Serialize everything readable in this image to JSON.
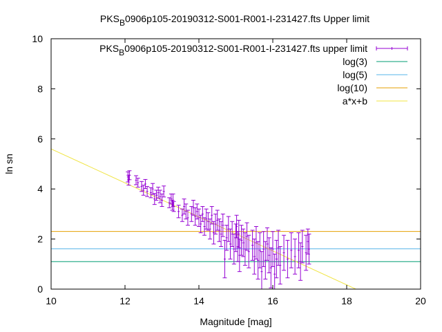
{
  "chart_data": {
    "type": "scatter",
    "title": "PKS_B0906p105-20190312-S001-R001-I-231427.fts Upper limit",
    "title_parts": {
      "pre": "PKS",
      "sub": "B",
      "post": "0906p105-20190312-S001-R001-I-231427.fts Upper limit"
    },
    "xlabel": "Magnitude [mag]",
    "ylabel": "ln sn",
    "xlim": [
      10,
      20
    ],
    "ylim": [
      0,
      10
    ],
    "xticks": [
      "10",
      "12",
      "14",
      "16",
      "18",
      "20"
    ],
    "yticks": [
      "0",
      "2",
      "4",
      "6",
      "8",
      "10"
    ],
    "grid": false,
    "legend_position": "top-right",
    "series": [
      {
        "name": "PKS_B0906p105-20190312-S001-R001-I-231427.fts upper limit",
        "name_parts": {
          "pre": "PKS",
          "sub": "B",
          "post": "0906p105-20190312-S001-R001-I-231427.fts upper limit"
        },
        "kind": "errorbars",
        "color": "#9400d3",
        "points": [
          [
            12.08,
            4.48,
            0.2
          ],
          [
            12.1,
            4.35,
            0.2
          ],
          [
            12.12,
            4.55,
            0.18
          ],
          [
            12.3,
            4.35,
            0.18
          ],
          [
            12.35,
            4.25,
            0.18
          ],
          [
            12.45,
            4.1,
            0.2
          ],
          [
            12.5,
            3.95,
            0.2
          ],
          [
            12.55,
            4.2,
            0.18
          ],
          [
            12.6,
            3.9,
            0.2
          ],
          [
            12.7,
            3.85,
            0.2
          ],
          [
            12.75,
            4.0,
            0.22
          ],
          [
            12.8,
            3.6,
            0.22
          ],
          [
            12.85,
            3.75,
            0.2
          ],
          [
            12.9,
            3.85,
            0.22
          ],
          [
            12.95,
            3.7,
            0.25
          ],
          [
            13.0,
            3.55,
            0.25
          ],
          [
            13.05,
            3.9,
            0.22
          ],
          [
            13.2,
            3.45,
            0.2
          ],
          [
            13.25,
            3.6,
            0.2
          ],
          [
            13.28,
            3.35,
            0.2
          ],
          [
            13.3,
            3.55,
            0.25
          ],
          [
            13.32,
            3.3,
            0.2
          ],
          [
            13.45,
            3.1,
            0.25
          ],
          [
            13.55,
            2.95,
            0.25
          ],
          [
            13.6,
            3.3,
            0.3
          ],
          [
            13.65,
            3.1,
            0.3
          ],
          [
            13.7,
            2.85,
            0.3
          ],
          [
            13.8,
            3.0,
            0.3
          ],
          [
            13.85,
            3.25,
            0.3
          ],
          [
            13.9,
            2.9,
            0.35
          ],
          [
            13.95,
            3.1,
            0.3
          ],
          [
            14.0,
            2.85,
            0.35
          ],
          [
            14.05,
            2.6,
            0.35
          ],
          [
            14.1,
            3.0,
            0.3
          ],
          [
            14.15,
            2.5,
            0.35
          ],
          [
            14.2,
            2.8,
            0.4
          ],
          [
            14.25,
            2.7,
            0.35
          ],
          [
            14.3,
            2.4,
            0.4
          ],
          [
            14.35,
            2.95,
            0.35
          ],
          [
            14.4,
            2.25,
            0.45
          ],
          [
            14.45,
            2.6,
            0.4
          ],
          [
            14.5,
            2.75,
            0.4
          ],
          [
            14.55,
            2.35,
            0.45
          ],
          [
            14.6,
            2.2,
            0.5
          ],
          [
            14.65,
            2.55,
            0.45
          ],
          [
            14.7,
            1.2,
            0.75
          ],
          [
            14.75,
            2.05,
            0.5
          ],
          [
            14.8,
            2.4,
            0.5
          ],
          [
            14.85,
            1.8,
            0.6
          ],
          [
            14.9,
            2.2,
            0.5
          ],
          [
            14.95,
            1.6,
            0.6
          ],
          [
            15.0,
            2.05,
            0.55
          ],
          [
            15.02,
            2.5,
            0.45
          ],
          [
            15.05,
            1.7,
            0.6
          ],
          [
            15.08,
            2.2,
            0.55
          ],
          [
            15.1,
            1.35,
            0.65
          ],
          [
            15.15,
            1.95,
            0.6
          ],
          [
            15.2,
            1.85,
            0.55
          ],
          [
            15.25,
            1.6,
            0.65
          ],
          [
            15.3,
            2.1,
            0.55
          ],
          [
            15.35,
            1.5,
            0.65
          ],
          [
            15.45,
            1.75,
            0.6
          ],
          [
            15.5,
            1.3,
            0.7
          ],
          [
            15.55,
            1.85,
            0.65
          ],
          [
            15.6,
            1.15,
            0.75
          ],
          [
            15.65,
            1.55,
            0.7
          ],
          [
            15.7,
            0.7,
            0.8
          ],
          [
            15.75,
            1.6,
            0.7
          ],
          [
            15.8,
            1.15,
            0.75
          ],
          [
            15.85,
            1.8,
            0.65
          ],
          [
            15.9,
            1.35,
            0.7
          ],
          [
            15.95,
            0.85,
            0.8
          ],
          [
            16.0,
            1.6,
            0.7
          ],
          [
            16.05,
            0.6,
            0.8
          ],
          [
            16.1,
            1.2,
            0.75
          ],
          [
            16.15,
            1.65,
            0.7
          ],
          [
            16.2,
            0.95,
            0.75
          ],
          [
            16.3,
            1.45,
            0.7
          ],
          [
            16.4,
            1.2,
            0.75
          ],
          [
            16.5,
            1.55,
            0.7
          ],
          [
            16.6,
            1.3,
            0.7
          ],
          [
            16.7,
            1.55,
            0.7
          ],
          [
            16.75,
            1.1,
            0.75
          ],
          [
            16.8,
            1.7,
            0.65
          ],
          [
            16.9,
            1.45,
            0.7
          ],
          [
            16.95,
            1.9,
            0.5
          ],
          [
            16.98,
            1.6,
            0.6
          ]
        ]
      },
      {
        "name": "log(3)",
        "kind": "hline",
        "y": 1.0986,
        "color": "#009e73"
      },
      {
        "name": "log(5)",
        "kind": "hline",
        "y": 1.6094,
        "color": "#56b4e9"
      },
      {
        "name": "log(10)",
        "kind": "hline",
        "y": 2.3026,
        "color": "#e69f00"
      },
      {
        "name": "a*x+b",
        "kind": "fit_line",
        "x": [
          10,
          18.25
        ],
        "y": [
          5.6,
          0
        ],
        "color": "#f0e442"
      }
    ]
  }
}
